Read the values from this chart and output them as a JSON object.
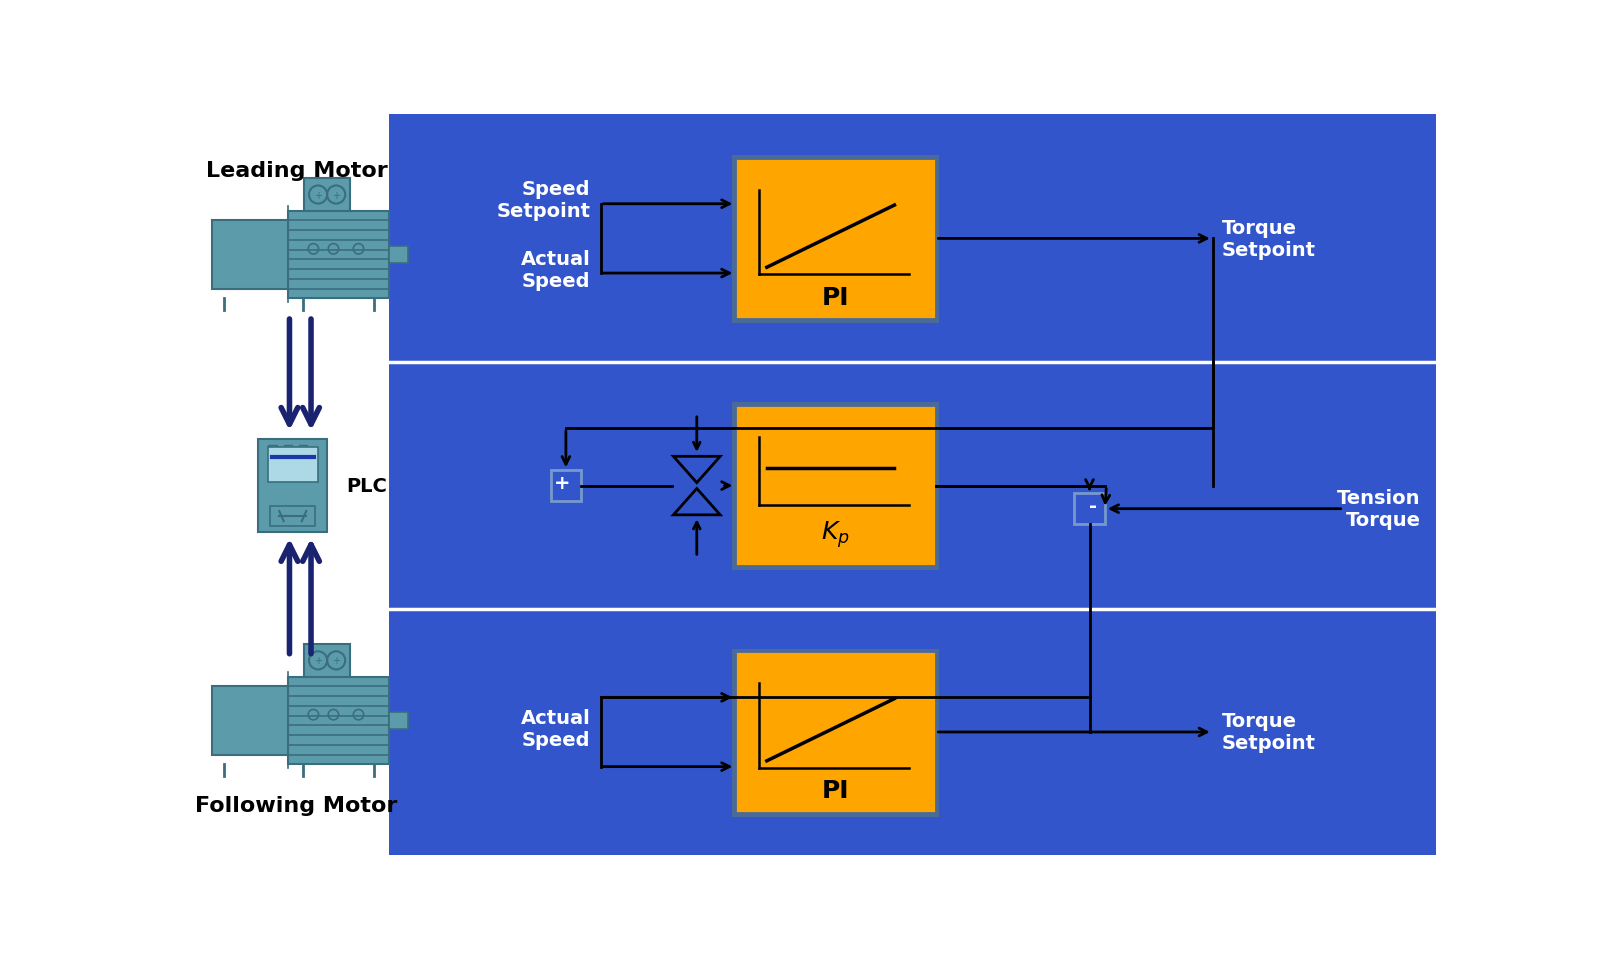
{
  "bg_white": "#FFFFFF",
  "bg_blue": "#3355CC",
  "orange": "#FFA500",
  "orange_border": "#4A6A99",
  "black": "#000000",
  "white": "#FFFFFF",
  "dark_blue_arrow": "#1A2370",
  "teal": "#5B9BAA",
  "teal_dark": "#3A6E7E",
  "teal_light": "#ADD8E6",
  "sumjunc_border": "#7799CC",
  "title_leading": "Leading Motor",
  "title_following": "Following Motor",
  "label_plc": "PLC",
  "label_speed_setpoint": "Speed\nSetpoint",
  "label_actual_speed": "Actual\nSpeed",
  "label_torque_setpoint": "Torque\nSetpoint",
  "label_tension_torque": "Tension\nTorque",
  "label_PI": "PI",
  "label_Kp": "$K_p$"
}
